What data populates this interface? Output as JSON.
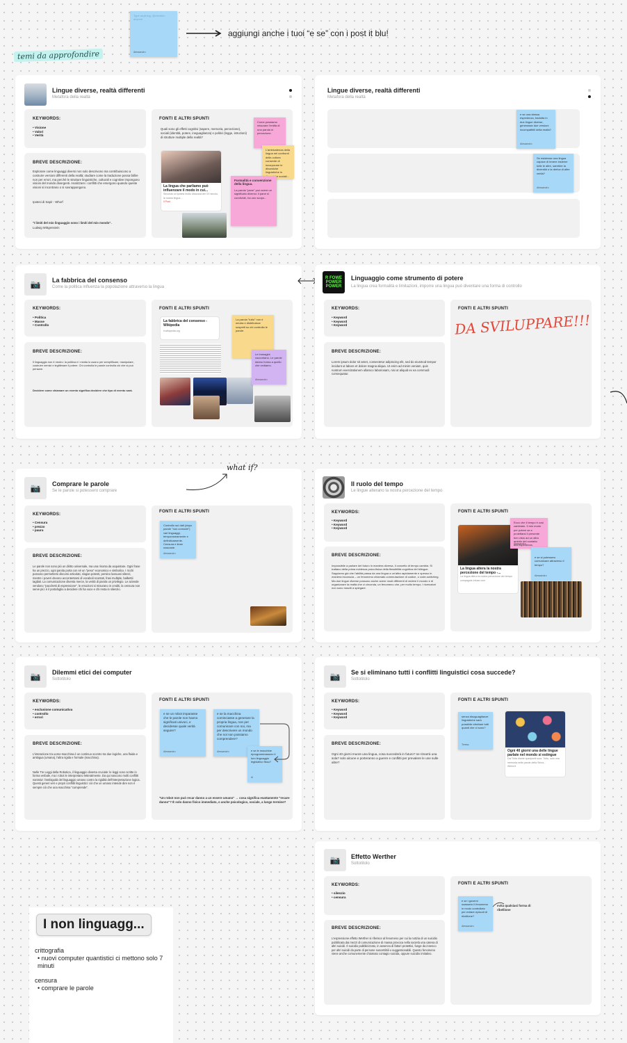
{
  "intro": {
    "sticky_placeholder": "Type anything, @mention anyone",
    "sticky_author": "Alessandro",
    "arrow_text": "aggiungi anche i tuoi “e se” con i post it blu!",
    "section_tag": "temi da approfondire"
  },
  "cards": {
    "lingue": {
      "title": "Lingue diverse, realtà differenti",
      "subtitle": "Metafora della realtà",
      "keywords_label": "KEYWORDS:",
      "keywords": [
        "Visione",
        "Valori",
        "Verità"
      ],
      "desc_label": "BREVE DESCRIZIONE:",
      "desc": "Esplorare come linguaggi diversi non solo descrivono ma contribuiscono a costruire versioni differenti della realtà; studiare come la traduzione possa fallire non per errori, ma perché le strutture linguistiche, culturali e cognitive impongono visioni del mondo divergenti. Analizzare i conflitti che emergono quando queste visioni si incontrano o si sovrappongono.",
      "desc_extra": "Ipotesi di Sapir - Whorf",
      "quote": "\"I limiti del mio linguaggio sono i limiti del mio mondo\".",
      "quote_author": "Ludwig Wittgenstein",
      "sources_label": "FONTI E ALTRI SPUNTI",
      "sources_bullet": "Quali sono gli effetti cognitivi (sapere, memoria, percezione), sociali (identità, potere, ineguaglianza) e politici (legge, istruzioni) di strutture multiple della realtà?",
      "link_title": "La lingua che parliamo può influenzare il modo in cui...",
      "link_desc": "Secondo un'ipotesi molto discussa del XX secolo, la nostra lingua ...",
      "link_meta": "il Post",
      "sticky1": "Come possiamo misurare l'entità di una parola in percezione.",
      "sticky2": "L'ambivalenza della lingua nei confronti della cultura consente di incorporare le dinamiche linguistiche in dinamiche sociali...",
      "sticky3_title": "Formalità e convenzione della lingua.",
      "sticky3": "La parola \"pane\" può avere un significato diverso: il pane si condivide, ha uno scopo..."
    },
    "lingue_copy": {
      "title": "Lingue diverse, realtà differenti",
      "subtitle": "Metafora della realtà",
      "sticky1": "e se una stessa esperienza, tradotta in due lingue diverse, generasse due versioni incompatibili della realtà?",
      "sticky1_author": "Alessandro",
      "sticky2": "Se esistesse una lingua capace di tenere insieme tutte le altre, sarebbe la diversità o la deriva di altre verità?",
      "sticky2_author": "Alessandro"
    },
    "fabbrica": {
      "title": "La fabbrica del consenso",
      "subtitle": "Come la politica influenza la popolazione attraverso la lingua",
      "keywords_label": "KEYWORDS:",
      "keywords": [
        "Politica",
        "Masse",
        "Controllo"
      ],
      "desc_label": "BREVE DESCRIZIONE:",
      "desc": "Il linguaggio non è neutro: la politica e i media lo usano per semplificare, manipolare, costruire nemici e legittimare il potere. Chi controlla le parole controlla ciò che si può pensare.",
      "desc_extra": "Decidere come chiamare un evento significa decidere che tipo di evento sarà.",
      "sources_label": "FONTI E ALTRI SPUNTI",
      "link_title": "La fabbrica del consenso - Wikipedia",
      "link_meta": "it.wikipedia.org",
      "sticky1": "La parola \"tutto\" non è neutra e distribuisce sospetti su chi controlla le parole.",
      "sticky2": "Le immagini raccontano. Le parole danno forma a quello che vediamo.",
      "sticky2_author": "Alessandro"
    },
    "strumento": {
      "title": "Linguaggio come strumento di potere",
      "subtitle": "La lingua crea formalità e limitazioni, imporre una lingua può diventare una forma di controllo",
      "keywords_label": "KEYWORDS:",
      "keywords": [
        "Keyword",
        "Keyword",
        "Keyword"
      ],
      "desc_label": "BREVE DESCRIZIONE:",
      "desc": "Lorem ipsum dolor sit amet, consectetur adipiscing elit, sed do eiusmod tempor incidunt ut labore et dolore magna aliqua. Ut enim ad minim veniam, quis nostrum exercitationem ullamco laboriosam, nisi ut aliquid ex ea commodi consequatur.",
      "sources_label": "FONTI E ALTRI SPUNTI",
      "handwritten": "DA SVILUPPARE!!!",
      "thumb_text": "R FOWE POWER POWER"
    },
    "comprare": {
      "title": "Comprare le parole",
      "subtitle": "Se le parole si potessero comprare",
      "keywords_label": "KEYWORDS:",
      "keywords": [
        "Censura",
        "prezzo",
        "paura"
      ],
      "desc_label": "BREVE DESCRIZIONE:",
      "desc": "Le parole non sono più un diritto universale, ma una risorsa da acquistare. Ogni frase ha un prezzo, ogni parola porta con sé un \"peso\" economico e simbolico. I ricchi possono permettersi discorsi articolati, slogan potenti, persino lussuosi silenzi, mentre i poveri devono accontentarsi di vocaboli scontati, frasi multiple, balbettii tagliati. La comunicazione diventa merce, la verità di parola un privilegio. Le aziende vendono \"pacchetti di espressione\", le emozioni si misurano in crediti, la censura non serve più: è il portafoglio a decidere chi ha voce e chi resta in silenzio.",
      "sources_label": "FONTI E ALTRI SPUNTI",
      "sticky1": "Controllo sui dati (dopo parole \"non comode\") vari linguaggi, temporaneamente e definitivamente. Censura e linee nascoste.",
      "sticky1_author": "Alessandro",
      "what_if": "what if?"
    },
    "tempo": {
      "title": "Il ruolo del tempo",
      "subtitle": "Le lingue alterano la nostra percezione del tempo",
      "keywords_label": "KEYWORDS:",
      "keywords": [
        "Keyword",
        "Keyword",
        "Keyword"
      ],
      "desc_label": "BREVE DESCRIZIONE:",
      "desc": "Impossibile a parlare del futuro in maniera diversa, il concetto di tempo cambia. Si trattano della prima evidenza psico-fisica della flessibilità cognitiva del bilingue. Sappiamo già che l'abilità passa da una lingua a un'altra rapidamente e spesso in maniera inconscia – un fenomeno chiamato commutazione di codice, o code-switching. Ma due lingue diverse possono anche avere modi differenti di vedere il mondo e di organizzare la realtà che ci circonda, un fenomeno che, per molto tempo, i ricercatori non sono riusciti a spiegare.",
      "sources_label": "FONTI E ALTRI SPUNTI",
      "link_title": "La lingua altera la nostra percezione del tempo -...",
      "link_desc": "La lingua altera la nostra percezione del tempo",
      "link_meta": "compagnie-infuse.com",
      "sticky1": "Ecco che il tempo è così cambiato. Il mio modo per potere se e proiettarsi il presente ben visto ad un altro ambito del contatto dell'esperienza.",
      "sticky1_author": "Alessandro",
      "sticky2": "e se si potessero comunicare attraverso il tempo?",
      "sticky2_author": "Alessandro"
    },
    "dilemmi": {
      "title": "Dilemmi etici dei computer",
      "subtitle": "Sottotitolo",
      "keywords_label": "KEYWORDS:",
      "keywords": [
        "esclusione comunicativa",
        "controllo",
        "errori"
      ],
      "desc_label": "BREVE DESCRIZIONE:",
      "desc": "L'interazione tra uomo-macchina è un continuo scontro tra due logiche, una fluida e ambigua (umana), l'altra rigida e formale (macchina).",
      "desc_extra": "Nelle Tre Leggi della Robotica, il linguaggio diventa cruciale: le leggi sono scritte in forma verbale, ma i robot le interpretano letteralmente. Da qui nascono molti conflitti narrativi: l'ambiguità del linguaggio umano contro la rigidità dell'interpretazione logica. Questi generi veri e propri conflitti linguistici: ciò che un umano intende dire non è sempre ciò che una macchina \"comprende\".",
      "sources_label": "FONTI E ALTRI SPUNTI",
      "sticky1": "e se un robot imparasse che le parole non hanno significati univoci, e decidesse quale verità seguire?",
      "sticky1_author": "Alessandro",
      "sticky2": "e se la macchina cominciasse a generare la propria lingua, non per comunicare con noi, ma per descrivere un mondo che noi non possiamo comprendere?",
      "sticky2_author": "Alessandro",
      "sticky3": "e se le macchine riprogrammassero il loro linguaggio legislativo fisso?",
      "sticky3_author": "Ai",
      "quote": "\"Un robot non può recar danno a un essere umano\" → cosa significa esattamente \"recare danno\"? È solo danno fisico immediato, o anche psicologico, sociale, a lungo termine?"
    },
    "conflitti": {
      "title": "Se si eliminano tutti i conflitti linguistici cosa succede?",
      "subtitle": "Sottotitolo",
      "keywords_label": "KEYWORDS:",
      "keywords": [
        "Keyword",
        "Keyword",
        "Keyword"
      ],
      "desc_label": "BREVE DESCRIZIONE:",
      "desc": "Ogni 40 giorni muore una lingua, cosa succederà in futuro? se rimarrà una sola? solo alcune e porteranno a guerre e conflitti per prevalere le une sulle altre?",
      "sources_label": "FONTI E ALTRI SPUNTI",
      "sticky1": "senza disuguaglianze linguistiche sarà possibile sfruttare tutti quanti che ci sono?",
      "sticky1_author": "Teresa",
      "link_title": "Ogni 40 giorni una delle lingue parlate nel mondo si estingue",
      "link_desc": "Dai Tolta diante spariponti sura. Tuttu, solo una memoria nelle parole della Sirica...",
      "link_meta": "Wired.it"
    },
    "werther": {
      "title": "Effetto Werther",
      "subtitle": "Sottotitolo",
      "keywords_label": "KEYWORDS:",
      "keywords": [
        "silenzio",
        "censura"
      ],
      "desc_label": "BREVE DESCRIZIONE:",
      "desc": "L'espressione effetto Werther si riferisce al fenomeno per cui la notizia di un suicidio pubblicata dai mezzi di comunicazione di massa provoca nella società una catena di altri suicidi. Il suicidio pubblicizzato, in assenza di fattori protettivi, funge da innesco per altri suicidi da parte di persone suscettibili o suggestionabili. Questo fenomeno viene anche comunemente chiamato contagio suicida, oppure suicidio imitativo.",
      "sources_label": "FONTI E ALTRI SPUNTI",
      "sticky1": "e se i governi usassero il fenomeno in modo controllato per evitare episodi di ribellione?",
      "sticky1_author": "Alessandro",
      "annotation": "evita qualsiasi forma di ribellione"
    }
  },
  "notes": {
    "chip": "I non linguagg...",
    "item1_title": "crittografia",
    "item1_bullet": "nuovi computer quantistici ci mettono solo 7 minuti",
    "item2_title": "censura",
    "item2_bullet": "comprare le parole"
  },
  "colors": {
    "sticky_blue": "#a8d8f8",
    "sticky_pink": "#f7a8d8",
    "sticky_yellow": "#f9d98c",
    "sticky_purple": "#d2b4f2",
    "handwritten_red": "#e0483a",
    "tag_bg": "#c4f2ee"
  },
  "icons": {
    "camera": "camera-icon",
    "link": "link-icon"
  }
}
